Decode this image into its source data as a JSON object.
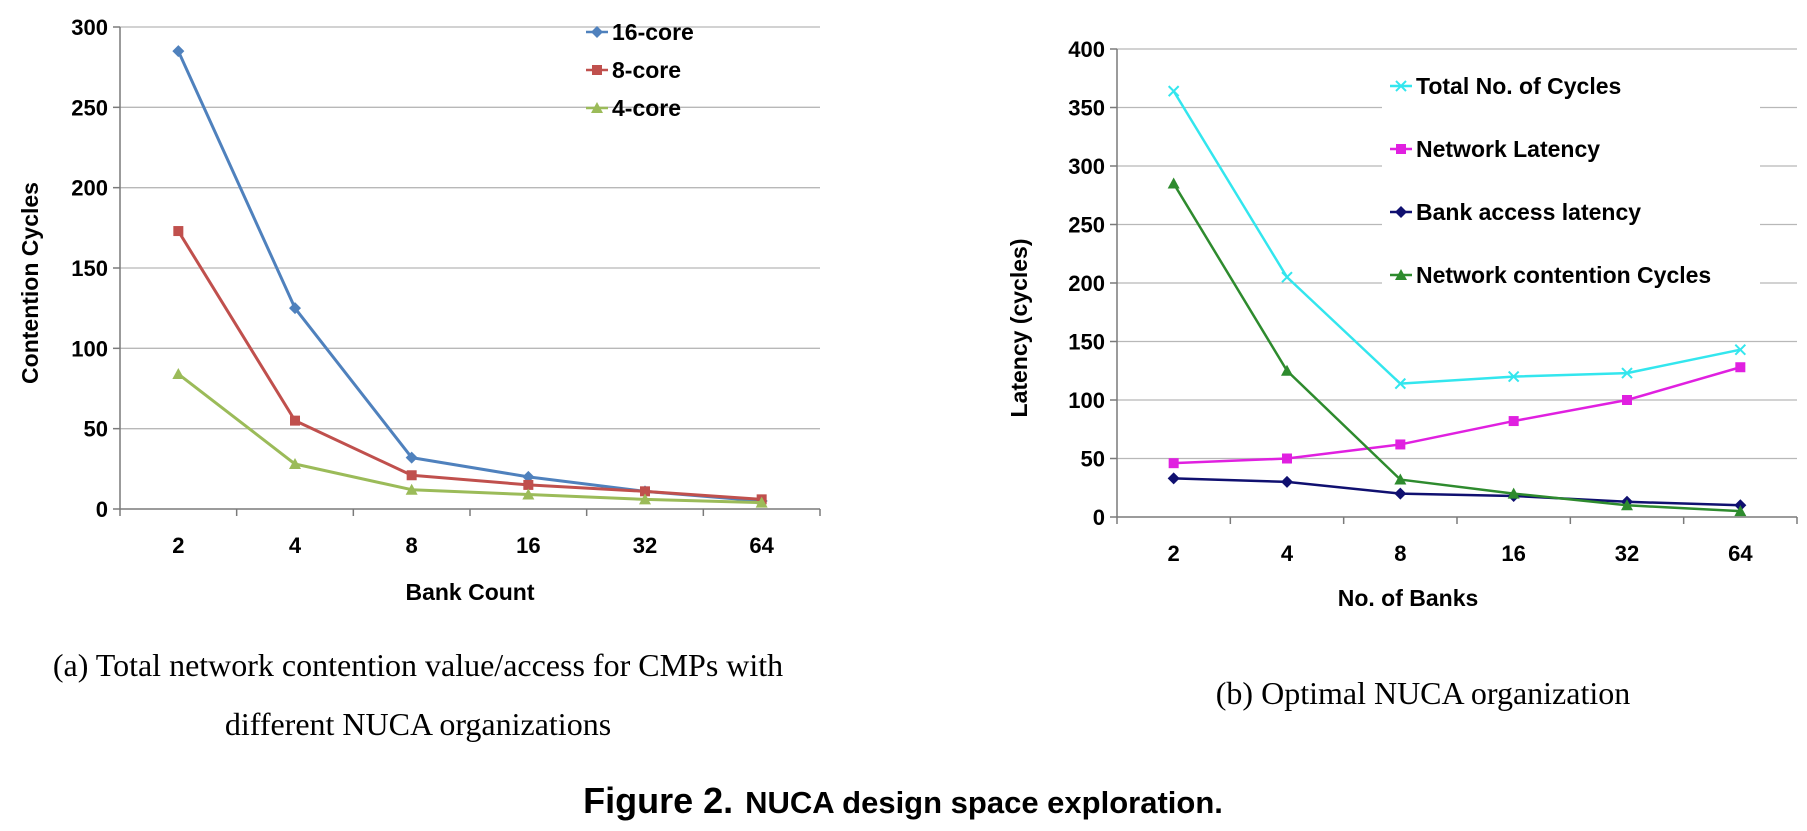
{
  "chart_data": [
    {
      "type": "line",
      "title": "",
      "xlabel": "Bank Count",
      "ylabel": "Contention Cycles",
      "categories": [
        "2",
        "4",
        "8",
        "16",
        "32",
        "64"
      ],
      "ylim": [
        0,
        300
      ],
      "yticks": [
        "0",
        "50",
        "100",
        "150",
        "200",
        "250",
        "300"
      ],
      "grid": true,
      "legend_position": "top-right",
      "series": [
        {
          "name": "16-core",
          "values": [
            285,
            125,
            32,
            20,
            11,
            5
          ],
          "color": "#4f81bd",
          "marker": "diamond"
        },
        {
          "name": "8-core",
          "values": [
            173,
            55,
            21,
            15,
            11,
            6
          ],
          "color": "#c0504d",
          "marker": "square"
        },
        {
          "name": "4-core",
          "values": [
            84,
            28,
            12,
            9,
            6,
            4
          ],
          "color": "#9bbb59",
          "marker": "triangle"
        }
      ],
      "caption_lines": [
        "(a) Total network contention value/access for CMPs with",
        "different NUCA organizations"
      ]
    },
    {
      "type": "line",
      "title": "",
      "xlabel": "No. of Banks",
      "ylabel": "Latency (cycles)",
      "categories": [
        "2",
        "4",
        "8",
        "16",
        "32",
        "64"
      ],
      "ylim": [
        0,
        400
      ],
      "yticks": [
        "0",
        "50",
        "100",
        "150",
        "200",
        "250",
        "300",
        "350",
        "400"
      ],
      "grid": true,
      "legend_position": "top-right",
      "series": [
        {
          "name": "Total No. of Cycles",
          "values": [
            364,
            205,
            114,
            120,
            123,
            143
          ],
          "color": "#33e6ee",
          "marker": "x"
        },
        {
          "name": "Network Latency",
          "values": [
            46,
            50,
            62,
            82,
            100,
            128
          ],
          "color": "#e020e0",
          "marker": "square"
        },
        {
          "name": "Bank access latency",
          "values": [
            33,
            30,
            20,
            18,
            13,
            10
          ],
          "color": "#101070",
          "marker": "diamond"
        },
        {
          "name": "Network contention Cycles",
          "values": [
            285,
            125,
            32,
            20,
            10,
            5
          ],
          "color": "#2e8b2e",
          "marker": "triangle"
        }
      ],
      "caption_lines": [
        "(b) Optimal NUCA organization"
      ]
    }
  ],
  "figure_caption": {
    "label": "Figure 2.",
    "text": "NUCA design space exploration."
  }
}
